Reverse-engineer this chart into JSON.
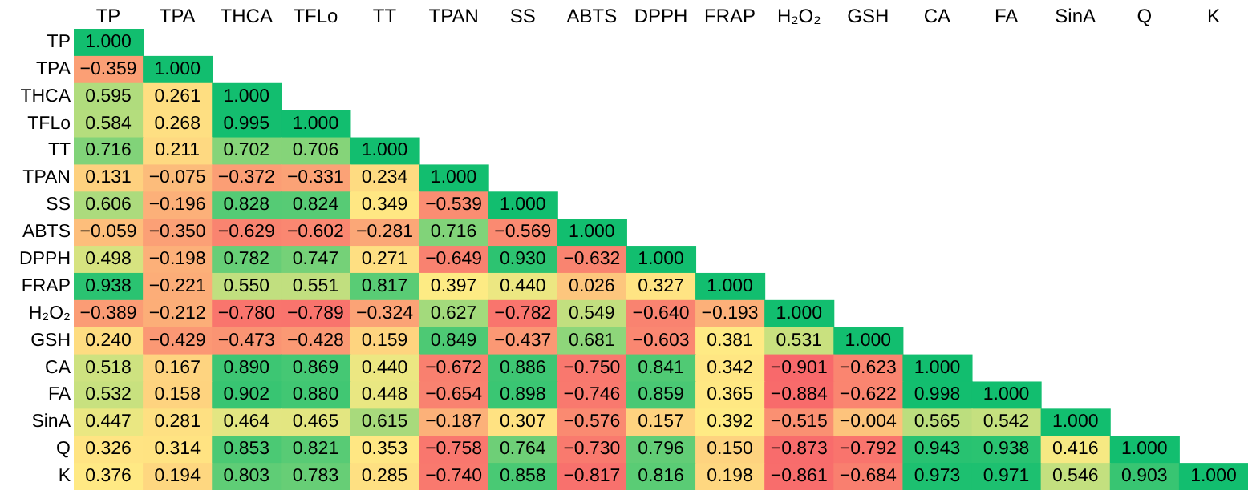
{
  "chart_data": {
    "type": "heatmap",
    "categories": [
      "TP",
      "TPA",
      "THCA",
      "TFLo",
      "TT",
      "TPAN",
      "SS",
      "ABTS",
      "DPPH",
      "FRAP",
      "H₂O₂",
      "GSH",
      "CA",
      "FA",
      "SinA",
      "Q",
      "K"
    ],
    "y_categories": [
      "TP",
      "TPA",
      "THCA",
      "TFLo",
      "TT",
      "TPAN",
      "SS",
      "ABTS",
      "DPPH",
      "FRAP",
      "H₂O₂",
      "GSH",
      "CA",
      "FA",
      "SinA",
      "Q",
      "K"
    ],
    "data_labels": true,
    "cell_labels": [
      [
        "1.000",
        null,
        null,
        null,
        null,
        null,
        null,
        null,
        null,
        null,
        null,
        null,
        null,
        null,
        null,
        null,
        null
      ],
      [
        "−0.359",
        "1.000",
        null,
        null,
        null,
        null,
        null,
        null,
        null,
        null,
        null,
        null,
        null,
        null,
        null,
        null,
        null
      ],
      [
        "0.595",
        "0.261",
        "1.000",
        null,
        null,
        null,
        null,
        null,
        null,
        null,
        null,
        null,
        null,
        null,
        null,
        null,
        null
      ],
      [
        "0.584",
        "0.268",
        "0.995",
        "1.000",
        null,
        null,
        null,
        null,
        null,
        null,
        null,
        null,
        null,
        null,
        null,
        null,
        null
      ],
      [
        "0.716",
        "0.211",
        "0.702",
        "0.706",
        "1.000",
        null,
        null,
        null,
        null,
        null,
        null,
        null,
        null,
        null,
        null,
        null,
        null
      ],
      [
        "0.131",
        "−0.075",
        "−0.372",
        "−0.331",
        "0.234",
        "1.000",
        null,
        null,
        null,
        null,
        null,
        null,
        null,
        null,
        null,
        null,
        null
      ],
      [
        "0.606",
        "−0.196",
        "0.828",
        "0.824",
        "0.349",
        "−0.539",
        "1.000",
        null,
        null,
        null,
        null,
        null,
        null,
        null,
        null,
        null,
        null
      ],
      [
        "−0.059",
        "−0.350",
        "−0.629",
        "−0.602",
        "−0.281",
        "0.716",
        "−0.569",
        "1.000",
        null,
        null,
        null,
        null,
        null,
        null,
        null,
        null,
        null
      ],
      [
        "0.498",
        "−0.198",
        "0.782",
        "0.747",
        "0.271",
        "−0.649",
        "0.930",
        "−0.632",
        "1.000",
        null,
        null,
        null,
        null,
        null,
        null,
        null,
        null
      ],
      [
        "0.938",
        "−0.221",
        "0.550",
        "0.551",
        "0.817",
        "0.397",
        "0.440",
        "0.026",
        "0.327",
        "1.000",
        null,
        null,
        null,
        null,
        null,
        null,
        null
      ],
      [
        "−0.389",
        "−0.212",
        "−0.780",
        "−0.789",
        "−0.324",
        "0.627",
        "−0.782",
        "0.549",
        "−0.640",
        "−0.193",
        "1.000",
        null,
        null,
        null,
        null,
        null,
        null
      ],
      [
        "0.240",
        "−0.429",
        "−0.473",
        "−0.428",
        "0.159",
        "0.849",
        "−0.437",
        "0.681",
        "−0.603",
        "0.381",
        "0.531",
        "1.000",
        null,
        null,
        null,
        null,
        null
      ],
      [
        "0.518",
        "0.167",
        "0.890",
        "0.869",
        "0.440",
        "−0.672",
        "0.886",
        "−0.750",
        "0.841",
        "0.342",
        "−0.901",
        "−0.623",
        "1.000",
        null,
        null,
        null,
        null
      ],
      [
        "0.532",
        "0.158",
        "0.902",
        "0.880",
        "0.448",
        "−0.654",
        "0.898",
        "−0.746",
        "0.859",
        "0.365",
        "−0.884",
        "−0.622",
        "0.998",
        "1.000",
        null,
        null,
        null
      ],
      [
        "0.447",
        "0.281",
        "0.464",
        "0.465",
        "0.615",
        "−0.187",
        "0.307",
        "−0.576",
        "0.157",
        "0.392",
        "−0.515",
        "−0.004",
        "0.565",
        "0.542",
        "1.000",
        null,
        null
      ],
      [
        "0.326",
        "0.314",
        "0.853",
        "0.821",
        "0.353",
        "−0.758",
        "0.764",
        "−0.730",
        "0.796",
        "0.150",
        "−0.873",
        "−0.792",
        "0.943",
        "0.938",
        "0.416",
        "1.000",
        null
      ],
      [
        "0.376",
        "0.194",
        "0.803",
        "0.783",
        "0.285",
        "−0.740",
        "0.858",
        "−0.817",
        "0.816",
        "0.198",
        "−0.861",
        "−0.684",
        "0.973",
        "0.971",
        "0.546",
        "0.903",
        "1.000"
      ]
    ],
    "cells": [
      [
        1.0,
        null,
        null,
        null,
        null,
        null,
        null,
        null,
        null,
        null,
        null,
        null,
        null,
        null,
        null,
        null,
        null
      ],
      [
        -0.359,
        1.0,
        null,
        null,
        null,
        null,
        null,
        null,
        null,
        null,
        null,
        null,
        null,
        null,
        null,
        null,
        null
      ],
      [
        0.595,
        0.261,
        1.0,
        null,
        null,
        null,
        null,
        null,
        null,
        null,
        null,
        null,
        null,
        null,
        null,
        null,
        null
      ],
      [
        0.584,
        0.268,
        0.995,
        1.0,
        null,
        null,
        null,
        null,
        null,
        null,
        null,
        null,
        null,
        null,
        null,
        null,
        null
      ],
      [
        0.716,
        0.211,
        0.702,
        0.706,
        1.0,
        null,
        null,
        null,
        null,
        null,
        null,
        null,
        null,
        null,
        null,
        null,
        null
      ],
      [
        0.131,
        -0.075,
        -0.372,
        -0.331,
        0.234,
        1.0,
        null,
        null,
        null,
        null,
        null,
        null,
        null,
        null,
        null,
        null,
        null
      ],
      [
        0.606,
        -0.196,
        0.828,
        0.824,
        0.349,
        -0.539,
        1.0,
        null,
        null,
        null,
        null,
        null,
        null,
        null,
        null,
        null,
        null
      ],
      [
        -0.059,
        -0.35,
        -0.629,
        -0.602,
        -0.281,
        0.716,
        -0.569,
        1.0,
        null,
        null,
        null,
        null,
        null,
        null,
        null,
        null,
        null
      ],
      [
        0.498,
        -0.198,
        0.782,
        0.747,
        0.271,
        -0.649,
        0.93,
        -0.632,
        1.0,
        null,
        null,
        null,
        null,
        null,
        null,
        null,
        null
      ],
      [
        0.938,
        -0.221,
        0.55,
        0.551,
        0.817,
        0.397,
        0.44,
        0.026,
        0.327,
        1.0,
        null,
        null,
        null,
        null,
        null,
        null,
        null
      ],
      [
        -0.389,
        -0.212,
        -0.78,
        -0.789,
        -0.324,
        0.627,
        -0.782,
        0.549,
        -0.64,
        -0.193,
        1.0,
        null,
        null,
        null,
        null,
        null,
        null
      ],
      [
        0.24,
        -0.429,
        -0.473,
        -0.428,
        0.159,
        0.849,
        -0.437,
        0.681,
        -0.603,
        0.381,
        0.531,
        1.0,
        null,
        null,
        null,
        null,
        null
      ],
      [
        0.518,
        0.167,
        0.89,
        0.869,
        0.44,
        -0.672,
        0.886,
        -0.75,
        0.841,
        0.342,
        -0.901,
        -0.623,
        1.0,
        null,
        null,
        null,
        null
      ],
      [
        0.532,
        0.158,
        0.902,
        0.88,
        0.448,
        -0.654,
        0.898,
        -0.746,
        0.859,
        0.365,
        -0.884,
        -0.622,
        0.998,
        1.0,
        null,
        null,
        null
      ],
      [
        0.447,
        0.281,
        0.464,
        0.465,
        0.615,
        -0.187,
        0.307,
        -0.576,
        0.157,
        0.392,
        -0.515,
        -0.004,
        0.565,
        0.542,
        1.0,
        null,
        null
      ],
      [
        0.326,
        0.314,
        0.853,
        0.821,
        0.353,
        -0.758,
        0.764,
        -0.73,
        0.796,
        0.15,
        -0.873,
        -0.792,
        0.943,
        0.938,
        0.416,
        1.0,
        null
      ],
      [
        0.376,
        0.194,
        0.803,
        0.783,
        0.285,
        -0.74,
        0.858,
        -0.817,
        0.816,
        0.198,
        -0.861,
        -0.684,
        0.973,
        0.971,
        0.546,
        0.903,
        1.0
      ]
    ]
  }
}
